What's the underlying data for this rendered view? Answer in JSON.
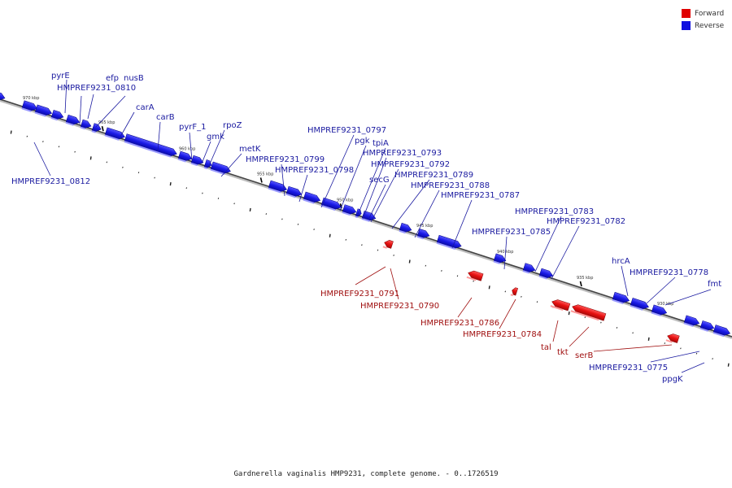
{
  "legend": {
    "forward_label": "Forward",
    "reverse_label": "Reverse",
    "forward_color": "#e00000",
    "reverse_color": "#1010e0"
  },
  "caption": "Gardnerella vaginalis HMP9231, complete genome. - 0..1726519",
  "ticks": [
    "970 kbp",
    "965 kbp",
    "960 kbp",
    "955 kbp",
    "950 kbp",
    "945 kbp",
    "940 kbp",
    "935 kbp",
    "930 kbp"
  ],
  "reverse_labels": [
    "pyrE",
    "efp",
    "nusB",
    "HMPREF9231_0810",
    "carA",
    "carB",
    "pyrF_1",
    "rpoZ",
    "gmk",
    "metK",
    "HMPREF9231_0812",
    "HMPREF9231_0797",
    "pgk",
    "tpiA",
    "HMPREF9231_0799",
    "HMPREF9231_0793",
    "HMPREF9231_0798",
    "HMPREF9231_0792",
    "secG",
    "HMPREF9231_0789",
    "HMPREF9231_0788",
    "HMPREF9231_0787",
    "HMPREF9231_0783",
    "HMPREF9231_0782",
    "HMPREF9231_0785",
    "hrcA",
    "HMPREF9231_0778",
    "fmt",
    "HMPREF9231_0775",
    "ppgK"
  ],
  "forward_labels": [
    "HMPREF9231_0791",
    "HMPREF9231_0790",
    "HMPREF9231_0786",
    "HMPREF9231_0784",
    "tal",
    "tkt",
    "serB"
  ]
}
